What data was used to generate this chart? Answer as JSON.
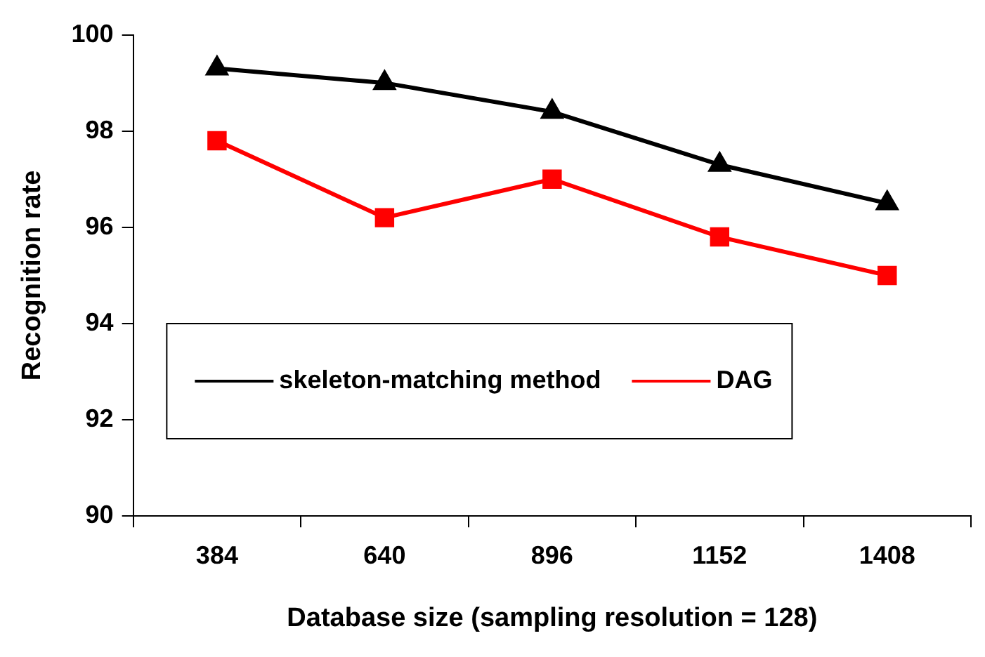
{
  "chart_data": {
    "type": "line",
    "xlabel": "Database size (sampling resolution = 128)",
    "ylabel": "Recognition rate",
    "categories": [
      "384",
      "640",
      "896",
      "1152",
      "1408"
    ],
    "series": [
      {
        "name": "skeleton-matching method",
        "color": "#000000",
        "marker": "triangle",
        "values": [
          99.3,
          99.0,
          98.4,
          97.3,
          96.5
        ]
      },
      {
        "name": "DAG",
        "color": "#ff0000",
        "marker": "square",
        "values": [
          97.8,
          96.2,
          97.0,
          95.8,
          95.0
        ]
      }
    ],
    "ylim": [
      90,
      100
    ],
    "yticks": [
      90,
      92,
      94,
      96,
      98,
      100
    ],
    "grid": false,
    "legend": "left",
    "line_style": "solid"
  }
}
